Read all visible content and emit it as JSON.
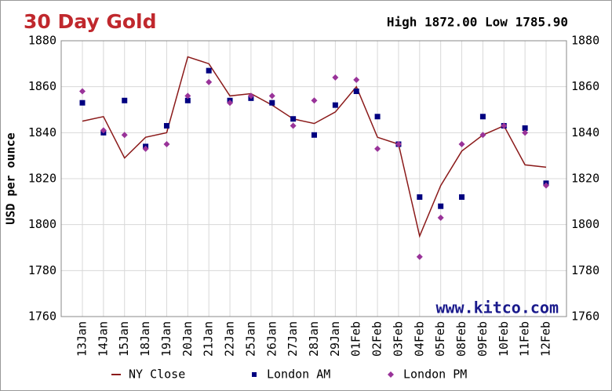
{
  "chart_data": {
    "type": "line",
    "title": "30 Day Gold",
    "annotations": [
      "High 1872.00 Low 1785.90",
      "www.kitco.com"
    ],
    "y_label": "USD per ounce",
    "categories": [
      "13Jan",
      "14Jan",
      "15Jan",
      "18Jan",
      "19Jan",
      "20Jan",
      "21Jan",
      "22Jan",
      "25Jan",
      "26Jan",
      "27Jan",
      "28Jan",
      "29Jan",
      "01Feb",
      "02Feb",
      "03Feb",
      "04Feb",
      "05Feb",
      "08Feb",
      "09Feb",
      "10Feb",
      "11Feb",
      "12Feb"
    ],
    "series": [
      {
        "name": "NY Close",
        "color": "#8b1a1a",
        "marker": "line",
        "values": [
          1845,
          1847,
          1829,
          1838,
          1840,
          1873,
          1870,
          1856,
          1857,
          1852,
          1846,
          1844,
          1849,
          1860,
          1838,
          1835,
          1795,
          1817,
          1832,
          1839,
          1843,
          1826,
          1825
        ]
      },
      {
        "name": "London AM",
        "color": "#000080",
        "marker": "square",
        "values": [
          1853,
          1840,
          1854,
          1834,
          1843,
          1854,
          1867,
          1854,
          1855,
          1853,
          1846,
          1839,
          1852,
          1858,
          1847,
          1835,
          1812,
          1808,
          1812,
          1847,
          1843,
          1842,
          1818
        ]
      },
      {
        "name": "London PM",
        "color": "#993399",
        "marker": "diamond",
        "values": [
          1858,
          1841,
          1839,
          1833,
          1835,
          1856,
          1862,
          1853,
          1856,
          1856,
          1843,
          1854,
          1864,
          1863,
          1833,
          1835,
          1786,
          1803,
          1835,
          1839,
          1843,
          1840,
          1817
        ]
      }
    ],
    "ylim": [
      1760,
      1880
    ],
    "yticks": [
      1760,
      1780,
      1800,
      1820,
      1840,
      1860,
      1880
    ],
    "y2lim": [
      1760,
      1880
    ],
    "y2ticks": [
      1760,
      1780,
      1800,
      1820,
      1840,
      1860,
      1880
    ],
    "grid": true
  }
}
